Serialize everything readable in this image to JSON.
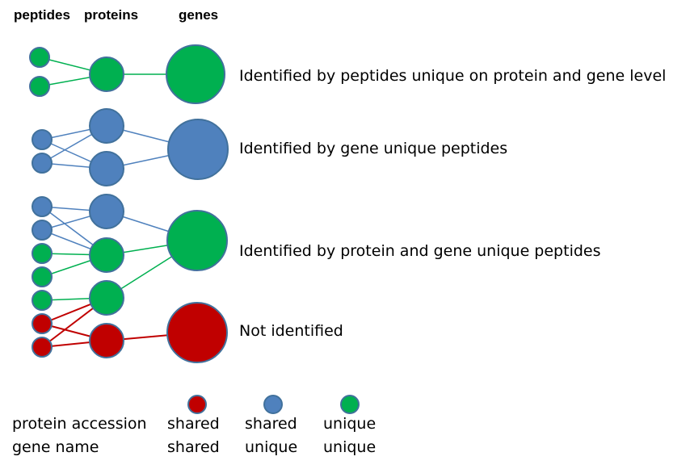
{
  "headers": {
    "peptides": "peptides",
    "proteins": "proteins",
    "genes": "genes"
  },
  "groups": [
    {
      "description": "Identified by peptides unique on protein and gene level",
      "gene_color": "#00b050"
    },
    {
      "description": "Identified by gene unique peptides",
      "gene_color": "#4f81bd"
    },
    {
      "description": "Identified by protein and gene unique peptides",
      "gene_color": "#00b050"
    },
    {
      "description": "Not identified",
      "gene_color": "#c00000"
    }
  ],
  "colors": {
    "green": "#00b050",
    "blue": "#4f81bd",
    "red": "#c00000",
    "outline": "#41719c"
  },
  "legend": {
    "row_labels": [
      "protein accession",
      "gene name"
    ],
    "columns": [
      {
        "color": "#c00000",
        "protein_accession": "shared",
        "gene_name": "shared"
      },
      {
        "color": "#4f81bd",
        "protein_accession": "shared",
        "gene_name": "unique"
      },
      {
        "color": "#00b050",
        "protein_accession": "unique",
        "gene_name": "unique"
      }
    ]
  }
}
